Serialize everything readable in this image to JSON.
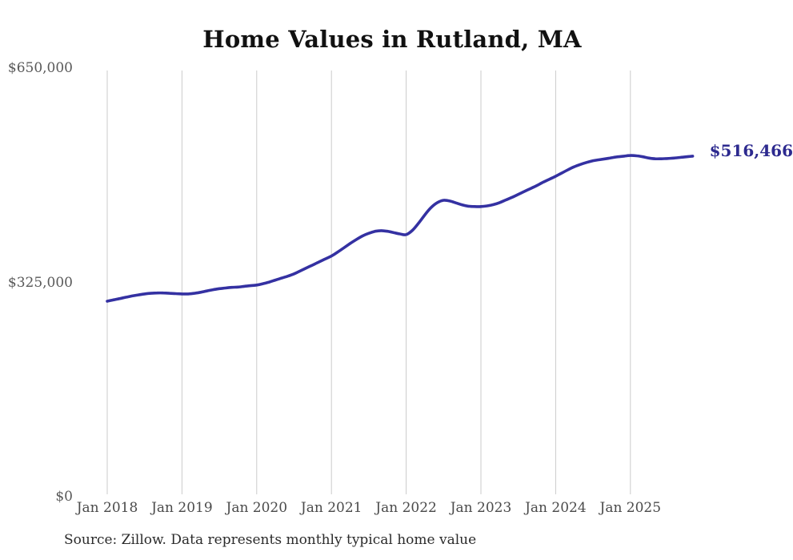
{
  "header": {
    "title": "Home Values in Rutland, MA"
  },
  "footer": {
    "source_note": "Source: Zillow. Data represents monthly typical home value"
  },
  "colors": {
    "background": "#ffffff",
    "title_text": "#111111",
    "axis_text": "#595959",
    "x_axis_text": "#4a4a4a",
    "source_text": "#2b2b2b",
    "grid": "#cbcbcb",
    "line": "#3431a2",
    "end_label": "#2d2a8f"
  },
  "chart_data": {
    "type": "line",
    "title": "Home Values in Rutland, MA",
    "xlabel": "",
    "ylabel": "",
    "ylim": [
      0,
      650000
    ],
    "grid": "vertical-only",
    "legend": "none",
    "x_tick_labels": [
      "Jan 2018",
      "Jan 2019",
      "Jan 2020",
      "Jan 2021",
      "Jan 2022",
      "Jan 2023",
      "Jan 2024",
      "Jan 2025"
    ],
    "y_ticks": [
      {
        "label": "$0",
        "value": 0
      },
      {
        "label": "$325,000",
        "value": 325000
      },
      {
        "label": "$650,000",
        "value": 650000
      }
    ],
    "final_value": 516466,
    "final_value_label": "$516,466",
    "series": [
      {
        "name": "Monthly typical home value",
        "start_month": "Jan 2018",
        "end_month": "Nov 2025",
        "values_monthly": [
          296500,
          298500,
          300500,
          302500,
          304500,
          306000,
          307500,
          308500,
          309000,
          309000,
          308500,
          308000,
          307500,
          307500,
          308500,
          310000,
          312000,
          314000,
          315500,
          316500,
          317500,
          318000,
          319000,
          320000,
          321000,
          323000,
          325500,
          328500,
          331500,
          334500,
          338000,
          342500,
          347000,
          351500,
          356000,
          360500,
          365000,
          371000,
          377500,
          384000,
          390000,
          395500,
          399500,
          402500,
          403500,
          402500,
          400500,
          398500,
          397500,
          404000,
          415000,
          427500,
          438500,
          446000,
          449500,
          448500,
          445500,
          442500,
          440500,
          440000,
          440000,
          441000,
          443000,
          446000,
          450000,
          454000,
          458500,
          463000,
          467500,
          472000,
          477000,
          481500,
          486000,
          491000,
          496000,
          500500,
          504000,
          507000,
          509500,
          511000,
          512500,
          514000,
          515500,
          516500,
          517500,
          517000,
          515500,
          513500,
          512500,
          512500,
          513000,
          513500,
          514500,
          515500,
          516466
        ]
      }
    ]
  }
}
